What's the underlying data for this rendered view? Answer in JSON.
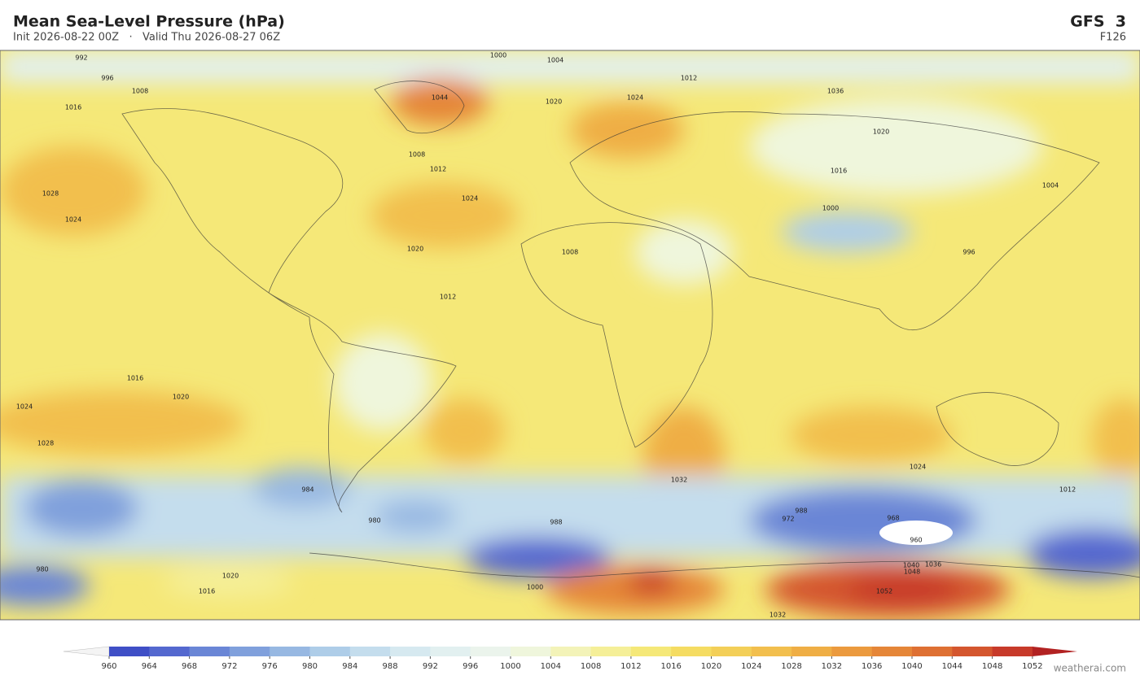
{
  "header": {
    "title": "Mean Sea-Level Pressure  (hPa)",
    "subtitle": "Init 2026-08-22 00Z   ·   Valid Thu 2026-08-27 06Z",
    "model": "GFS  3",
    "forecast": "F126"
  },
  "map": {
    "contour_labels": [
      "992",
      "1000",
      "1004",
      "996",
      "1008",
      "1012",
      "1016",
      "1020",
      "1024",
      "1028",
      "1036",
      "1044",
      "1024",
      "1020",
      "1008",
      "1012",
      "1024",
      "1020",
      "1016",
      "1000",
      "1004",
      "996",
      "1008",
      "1012",
      "1016",
      "1020",
      "1024",
      "1028",
      "1032",
      "1024",
      "988",
      "984",
      "980",
      "972",
      "968",
      "960",
      "1048",
      "1052",
      "1040",
      "1036",
      "1032",
      "1000",
      "988",
      "980",
      "1020",
      "1016",
      "1012"
    ]
  },
  "colorbar": {
    "ticks": [
      960,
      964,
      968,
      972,
      976,
      980,
      984,
      988,
      992,
      996,
      1000,
      1004,
      1008,
      1012,
      1016,
      1020,
      1024,
      1028,
      1032,
      1036,
      1040,
      1044,
      1048,
      1052
    ],
    "colors": [
      "#3f4fc6",
      "#5468cf",
      "#6a86d6",
      "#80a0dc",
      "#97b8e2",
      "#aecde8",
      "#c4dded",
      "#d6e9f0",
      "#e2f0f0",
      "#ebf4ec",
      "#eff6dc",
      "#f3f3b8",
      "#f5ef98",
      "#f5e878",
      "#f5dc62",
      "#f3cf58",
      "#f2bf4e",
      "#efae45",
      "#eb9a3e",
      "#e58638",
      "#de7033",
      "#d4562e",
      "#c73a2a"
    ],
    "under_color": "#f4f4f4",
    "over_color": "#b22222"
  },
  "footer": {
    "credit": "weatherai.com"
  }
}
